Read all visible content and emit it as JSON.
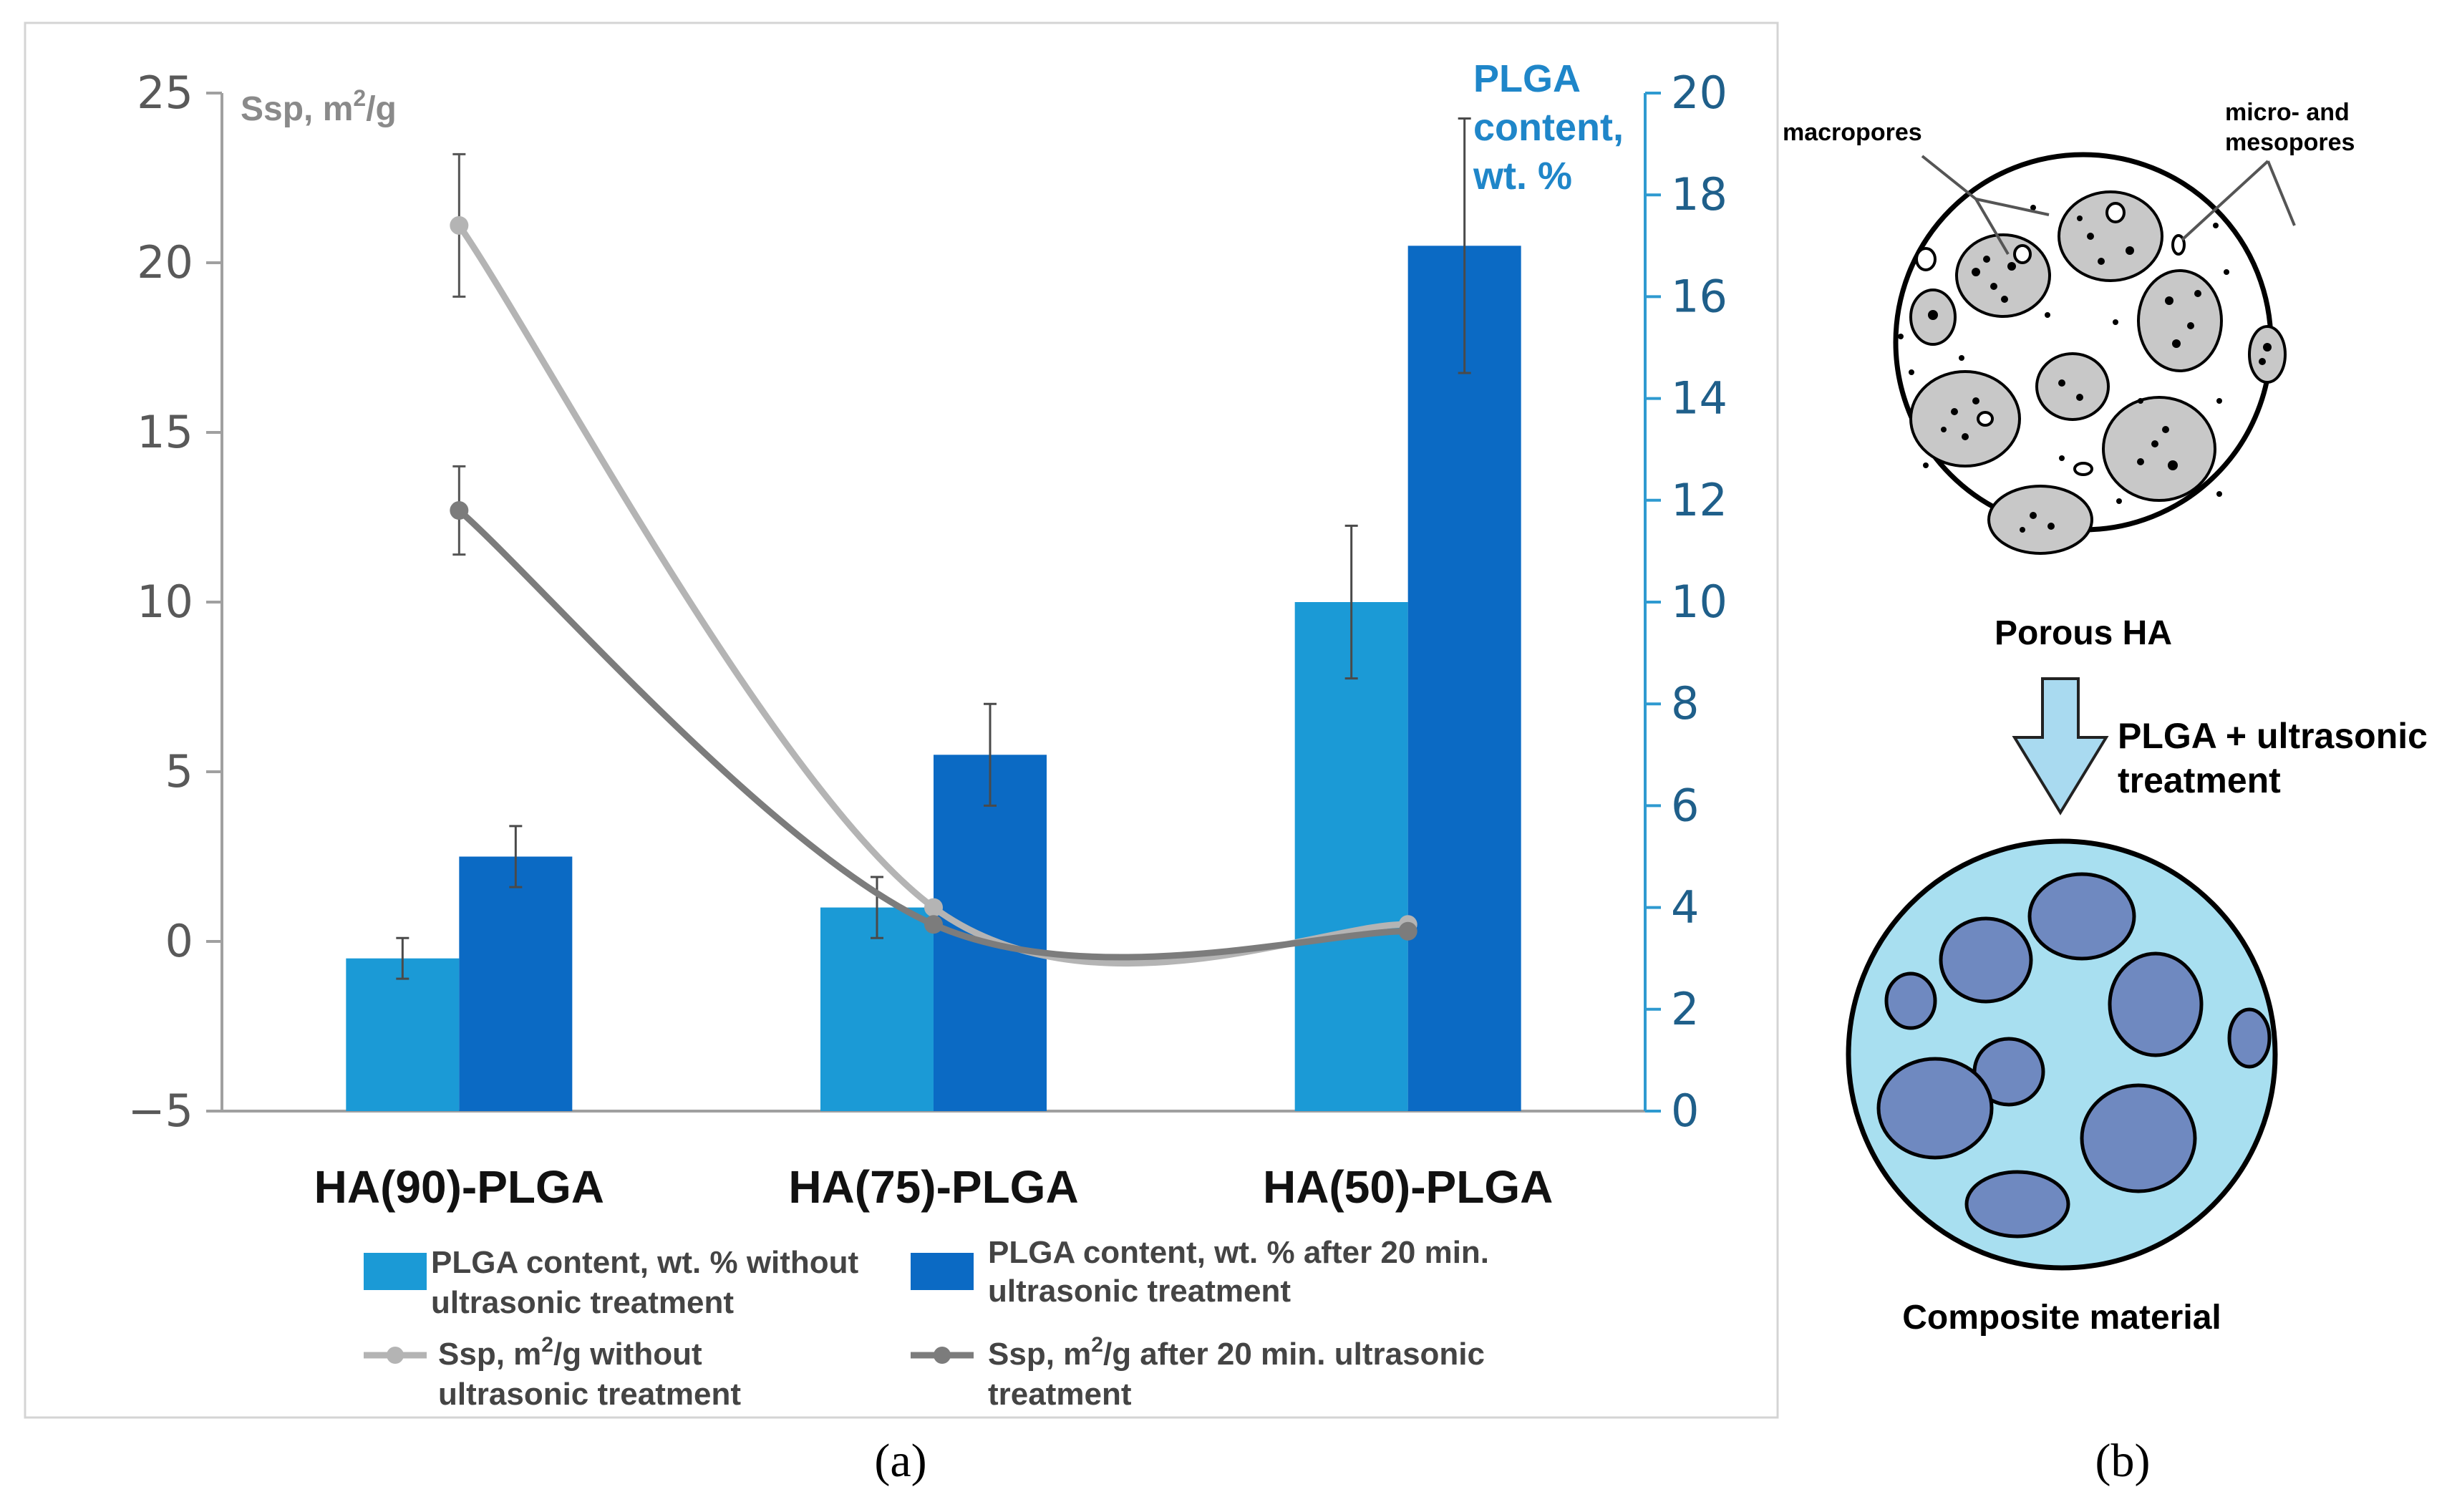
{
  "chart_data": {
    "type": "bar",
    "categories": [
      "HA(90)-PLGA",
      "HA(75)-PLGA",
      "HA(50)-PLGA"
    ],
    "series": [
      {
        "name": "PLGA content, wt. % without ultrasonic treatment",
        "axis": "right",
        "kind": "bar",
        "values": [
          3.0,
          4.0,
          10.0
        ],
        "errors": [
          0.4,
          0.6,
          1.5
        ],
        "color": "#1b9ad6"
      },
      {
        "name": "PLGA content, wt. % after 20 min. ultrasonic treatment",
        "axis": "right",
        "kind": "bar",
        "values": [
          5.0,
          7.0,
          17.0
        ],
        "errors": [
          0.6,
          1.0,
          2.5
        ],
        "color": "#0b6ac4"
      },
      {
        "name": "Ssp, m2/g without ultrasonic treatment",
        "axis": "left",
        "kind": "line",
        "values": [
          21.1,
          1.0,
          0.5
        ],
        "errors": [
          2.1,
          0,
          0
        ],
        "color": "#b4b4b4"
      },
      {
        "name": "Ssp, m2/g after 20 min. ultrasonic treatment",
        "axis": "left",
        "kind": "line",
        "values": [
          12.7,
          0.5,
          0.3
        ],
        "errors": [
          1.3,
          0,
          0
        ],
        "color": "#7c7c7c"
      }
    ],
    "left_axis": {
      "label_main": "Ssp, m",
      "label_sup": "2",
      "label_tail": "/g",
      "ylim": [
        -5,
        25
      ],
      "ticks": [
        "−5",
        "0",
        "5",
        "10",
        "15",
        "20",
        "25"
      ]
    },
    "right_axis": {
      "label_lines": [
        "PLGA",
        "content,",
        "wt. %"
      ],
      "ylim": [
        0,
        20
      ],
      "ticks": [
        "0",
        "2",
        "4",
        "6",
        "8",
        "10",
        "12",
        "14",
        "16",
        "18",
        "20"
      ]
    },
    "legend": [
      {
        "line1": "PLGA content, wt. % without",
        "line2": "ultrasonic treatment"
      },
      {
        "line1": "PLGA content, wt. % after 20 min.",
        "line2": "ultrasonic treatment"
      },
      {
        "line1_pre": "Ssp, m",
        "line1_sup": "2",
        "line1_post": "/g without",
        "line2": "ultrasonic treatment"
      },
      {
        "line1_pre": "Ssp, m",
        "line1_sup": "2",
        "line1_post": "/g after 20 min. ultrasonic",
        "line2": "treatment"
      }
    ],
    "colors": {
      "axis": "#a0a0a0",
      "right_axis": "#2e9ad0",
      "right_label": "#1f86c9",
      "left_label": "#8a8a8a"
    }
  },
  "schematic": {
    "labels": {
      "macropores": "macropores",
      "micro_line1": "micro- and",
      "micro_line2": "mesopores",
      "porous": "Porous HA",
      "step_line1": "PLGA + ultrasonic",
      "step_line2": "treatment",
      "composite": "Composite material"
    },
    "colors": {
      "pore_fill": "#c8c8c8",
      "composite_fill": "#a8dff0",
      "filled_pore": "#6f89c0",
      "arrow": "#a9daf0"
    }
  },
  "captions": {
    "a": "(a)",
    "b": "(b)"
  }
}
